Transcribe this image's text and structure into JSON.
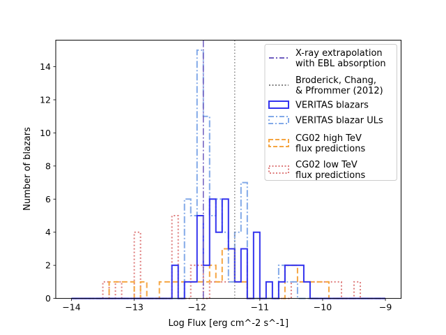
{
  "chart_data": {
    "type": "histogram",
    "title": "",
    "xlabel": "Log Flux [erg cm^-2 s^-1]",
    "ylabel": "Number of blazars",
    "xlim": [
      -14.25,
      -8.75
    ],
    "ylim": [
      0,
      15.6
    ],
    "xticks": [
      -14,
      -13,
      -12,
      -11,
      -10,
      -9
    ],
    "xtick_labels": [
      "−14",
      "−13",
      "−12",
      "−11",
      "−10",
      "−9"
    ],
    "yticks": [
      0,
      2,
      4,
      6,
      8,
      10,
      12,
      14
    ],
    "ytick_labels": [
      "0",
      "2",
      "4",
      "6",
      "8",
      "10",
      "12",
      "14"
    ],
    "bins": {
      "start": -14,
      "end": -9,
      "count": 50,
      "width": 0.1
    },
    "series": [
      {
        "name": "CG02 low TeV\nflux predictions",
        "style": "dotted",
        "color": "#de7b7b",
        "counts": [
          0,
          0,
          0,
          0,
          0,
          1,
          0,
          1,
          0,
          0,
          4,
          0,
          0,
          0,
          0,
          0,
          5,
          0,
          0,
          2,
          2,
          0,
          1,
          1,
          1,
          1,
          1,
          1,
          0,
          0,
          0,
          0,
          0,
          0,
          0,
          1,
          1,
          1,
          1,
          1,
          1,
          1,
          1,
          0,
          0,
          1,
          0,
          0,
          0,
          0
        ]
      },
      {
        "name": "CG02 high TeV\nflux predictions",
        "style": "dashed",
        "color": "#f5a541",
        "counts": [
          0,
          0,
          0,
          0,
          0,
          0,
          1,
          1,
          1,
          1,
          0,
          1,
          0,
          0,
          1,
          1,
          1,
          1,
          1,
          1,
          1,
          1,
          2,
          1,
          3,
          3,
          1,
          1,
          0,
          0,
          0,
          0,
          0,
          0,
          2,
          2,
          1,
          1,
          1,
          1,
          1,
          0,
          0,
          0,
          0,
          0,
          0,
          0,
          0,
          0
        ]
      },
      {
        "name": "VERITAS blazar ULs",
        "style": "dashdot",
        "color": "#82a9e8",
        "counts": [
          0,
          0,
          0,
          0,
          0,
          0,
          0,
          0,
          0,
          0,
          0,
          0,
          0,
          0,
          0,
          0,
          0,
          0,
          6,
          5,
          15,
          11,
          5,
          6,
          4,
          1,
          4,
          7,
          0,
          0,
          0,
          0,
          0,
          2,
          1,
          1,
          0,
          0,
          0,
          0,
          0,
          0,
          0,
          0,
          0,
          0,
          0,
          0,
          0,
          0
        ]
      },
      {
        "name": "VERITAS blazars",
        "style": "solid",
        "color": "#3333ee",
        "counts": [
          0,
          0,
          0,
          0,
          0,
          0,
          0,
          0,
          0,
          0,
          0,
          0,
          0,
          0,
          0,
          0,
          2,
          0,
          1,
          1,
          5,
          2,
          6,
          4,
          6,
          3,
          1,
          3,
          0,
          4,
          0,
          1,
          0,
          1,
          2,
          2,
          2,
          1,
          0,
          0,
          0,
          0,
          0,
          0,
          0,
          0,
          0,
          0,
          0,
          0
        ]
      }
    ],
    "vlines": [
      {
        "name": "X-ray extrapolation\nwith EBL absorption",
        "x": -11.9,
        "style": "dashdot",
        "color": "#6e5cbf"
      },
      {
        "name": "Broderick, Chang,\n& Pfrommer (2012)",
        "x": -11.4,
        "style": "dotted",
        "color": "#808080"
      }
    ],
    "legend": {
      "position": "upper right",
      "entries": [
        {
          "key": "vline0",
          "label": "X-ray extrapolation\nwith EBL absorption",
          "style": "dashdot",
          "color": "#6e5cbf",
          "swatch": "line"
        },
        {
          "key": "vline1",
          "label": "Broderick, Chang,\n& Pfrommer (2012)",
          "style": "dotted",
          "color": "#808080",
          "swatch": "line"
        },
        {
          "key": "veritas",
          "label": "VERITAS blazars",
          "style": "solid",
          "color": "#3333ee",
          "swatch": "box"
        },
        {
          "key": "uls",
          "label": "VERITAS blazar ULs",
          "style": "dashdot",
          "color": "#82a9e8",
          "swatch": "box"
        },
        {
          "key": "high",
          "label": "CG02 high TeV\nflux predictions",
          "style": "dashed",
          "color": "#f5a541",
          "swatch": "box"
        },
        {
          "key": "low",
          "label": "CG02 low TeV\nflux predictions",
          "style": "dotted",
          "color": "#de7b7b",
          "swatch": "box"
        }
      ]
    }
  }
}
